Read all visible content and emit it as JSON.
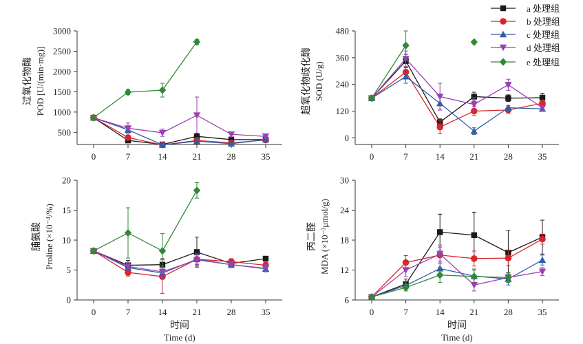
{
  "legend": {
    "entries": [
      {
        "label": "a 处理组",
        "color": "#1a1a1a",
        "marker": "square"
      },
      {
        "label": "b 处理组",
        "color": "#d7262b",
        "marker": "circle"
      },
      {
        "label": "c 处理组",
        "color": "#2e5ea8",
        "marker": "triangle-up"
      },
      {
        "label": "d 处理组",
        "color": "#9a3fb5",
        "marker": "triangle-down"
      },
      {
        "label": "e 处理组",
        "color": "#2f8a37",
        "marker": "diamond"
      }
    ]
  },
  "chart_data": [
    {
      "id": "pod",
      "type": "line",
      "ylabel_cn": "过氧化物酶",
      "ylabel_en": "POD [U/(min·mg)]",
      "xlabel_cn": "",
      "xlabel_en": "",
      "x": [
        0,
        7,
        14,
        21,
        28,
        35
      ],
      "xticks": [
        "0",
        "7",
        "14",
        "21",
        "28",
        "35"
      ],
      "ylim": [
        200,
        3000
      ],
      "yticks": [
        500,
        1000,
        1500,
        2000,
        2500,
        3000
      ],
      "ytick_labels": [
        "500",
        "1000",
        "1500",
        "2000",
        "2500",
        "3000"
      ],
      "series": [
        {
          "name": "a 处理组",
          "values": [
            860,
            300,
            200,
            400,
            320,
            320
          ],
          "err": [
            0,
            40,
            20,
            80,
            40,
            30
          ]
        },
        {
          "name": "b 处理组",
          "values": [
            860,
            370,
            190,
            300,
            240,
            310
          ],
          "err": [
            0,
            40,
            20,
            60,
            30,
            30
          ]
        },
        {
          "name": "c 处理组",
          "values": [
            860,
            560,
            190,
            280,
            220,
            320
          ],
          "err": [
            0,
            60,
            20,
            50,
            30,
            30
          ]
        },
        {
          "name": "d 处理组",
          "values": [
            860,
            600,
            490,
            920,
            450,
            400
          ],
          "err": [
            0,
            130,
            90,
            450,
            60,
            40
          ]
        },
        {
          "name": "e 处理组",
          "values": [
            860,
            1490,
            1540,
            2730,
            null,
            null
          ],
          "err": [
            0,
            60,
            170,
            60,
            0,
            0
          ]
        }
      ]
    },
    {
      "id": "sod",
      "type": "line",
      "ylabel_cn": "超氧化物歧化酶",
      "ylabel_en": "SOD (U/g)",
      "xlabel_cn": "",
      "xlabel_en": "",
      "x": [
        0,
        7,
        14,
        21,
        28,
        35
      ],
      "xticks": [
        "0",
        "7",
        "14",
        "21",
        "28",
        "35"
      ],
      "ylim": [
        -30,
        480
      ],
      "yticks": [
        0,
        120,
        240,
        360,
        480
      ],
      "ytick_labels": [
        "0",
        "120",
        "240",
        "360",
        "480"
      ],
      "series": [
        {
          "name": "a 处理组",
          "values": [
            178,
            345,
            70,
            185,
            178,
            180
          ],
          "err": [
            8,
            30,
            15,
            20,
            15,
            20
          ]
        },
        {
          "name": "b 处理组",
          "values": [
            178,
            295,
            48,
            120,
            125,
            155
          ],
          "err": [
            8,
            25,
            30,
            20,
            15,
            15
          ]
        },
        {
          "name": "c 处理组",
          "values": [
            178,
            275,
            155,
            30,
            135,
            130
          ],
          "err": [
            8,
            30,
            30,
            15,
            10,
            10
          ]
        },
        {
          "name": "d 处理组",
          "values": [
            178,
            355,
            185,
            150,
            238,
            135
          ],
          "err": [
            8,
            35,
            60,
            30,
            25,
            10
          ]
        },
        {
          "name": "e 处理组",
          "values": [
            178,
            415,
            null,
            430,
            null,
            null
          ],
          "err": [
            8,
            65,
            0,
            0,
            0,
            0
          ]
        }
      ]
    },
    {
      "id": "proline",
      "type": "line",
      "ylabel_cn": "脯氨酸",
      "ylabel_en": "Proline (×10⁻⁴/%)",
      "xlabel_cn": "时间",
      "xlabel_en": "Time (d)",
      "x": [
        0,
        7,
        14,
        21,
        28,
        35
      ],
      "xticks": [
        "0",
        "7",
        "14",
        "21",
        "28",
        "35"
      ],
      "ylim": [
        0,
        20
      ],
      "yticks": [
        0,
        5,
        10,
        15,
        20
      ],
      "ytick_labels": [
        "0",
        "5",
        "10",
        "15",
        "20"
      ],
      "series": [
        {
          "name": "a 处理组",
          "values": [
            8.2,
            5.8,
            5.9,
            8.0,
            6.1,
            6.9
          ],
          "err": [
            0.2,
            0.8,
            1.0,
            2.5,
            0.4,
            0.3
          ]
        },
        {
          "name": "b 处理组",
          "values": [
            8.2,
            4.6,
            3.9,
            6.8,
            6.4,
            5.8
          ],
          "err": [
            0.2,
            0.6,
            2.8,
            1.0,
            0.5,
            0.5
          ]
        },
        {
          "name": "c 处理组",
          "values": [
            8.2,
            5.4,
            4.5,
            6.8,
            5.9,
            5.2
          ],
          "err": [
            0.2,
            0.6,
            1.0,
            0.8,
            0.5,
            0.5
          ]
        },
        {
          "name": "d 处理组",
          "values": [
            8.2,
            5.6,
            4.7,
            6.7,
            5.9,
            5.3
          ],
          "err": [
            0.2,
            0.6,
            1.0,
            0.8,
            0.5,
            0.6
          ]
        },
        {
          "name": "e 处理组",
          "values": [
            8.2,
            11.2,
            8.2,
            18.3,
            null,
            null
          ],
          "err": [
            0.2,
            4.2,
            2.9,
            1.3,
            0,
            0
          ]
        }
      ]
    },
    {
      "id": "mda",
      "type": "line",
      "ylabel_cn": "丙二醛",
      "ylabel_en": "MDA (×10⁻³μmol/g)",
      "xlabel_cn": "时间",
      "xlabel_en": "Time (d)",
      "x": [
        0,
        7,
        14,
        21,
        28,
        35
      ],
      "xticks": [
        "0",
        "7",
        "14",
        "21",
        "28",
        "35"
      ],
      "ylim": [
        6,
        30
      ],
      "yticks": [
        6,
        12,
        18,
        24,
        30
      ],
      "ytick_labels": [
        "6",
        "12",
        "18",
        "24",
        "30"
      ],
      "series": [
        {
          "name": "a 处理组",
          "values": [
            6.6,
            9.2,
            19.6,
            19.0,
            15.5,
            18.6
          ],
          "err": [
            0.3,
            1.0,
            3.6,
            4.6,
            4.4,
            3.4
          ]
        },
        {
          "name": "b 处理组",
          "values": [
            6.6,
            13.5,
            15.0,
            14.3,
            14.4,
            18.2
          ],
          "err": [
            0.3,
            1.4,
            1.6,
            1.5,
            1.5,
            1.0
          ]
        },
        {
          "name": "c 处理组",
          "values": [
            6.6,
            8.9,
            12.3,
            10.8,
            10.2,
            14.0
          ],
          "err": [
            0.3,
            0.8,
            1.5,
            1.4,
            1.2,
            1.0
          ]
        },
        {
          "name": "d 处理组",
          "values": [
            6.6,
            12.0,
            15.2,
            9.0,
            10.5,
            11.7
          ],
          "err": [
            0.3,
            1.3,
            1.8,
            1.2,
            1.0,
            0.8
          ]
        },
        {
          "name": "e 处理组",
          "values": [
            6.6,
            8.5,
            11.0,
            10.7,
            10.5,
            null
          ],
          "err": [
            0.3,
            0.7,
            1.5,
            1.3,
            1.0,
            0
          ]
        }
      ]
    }
  ]
}
